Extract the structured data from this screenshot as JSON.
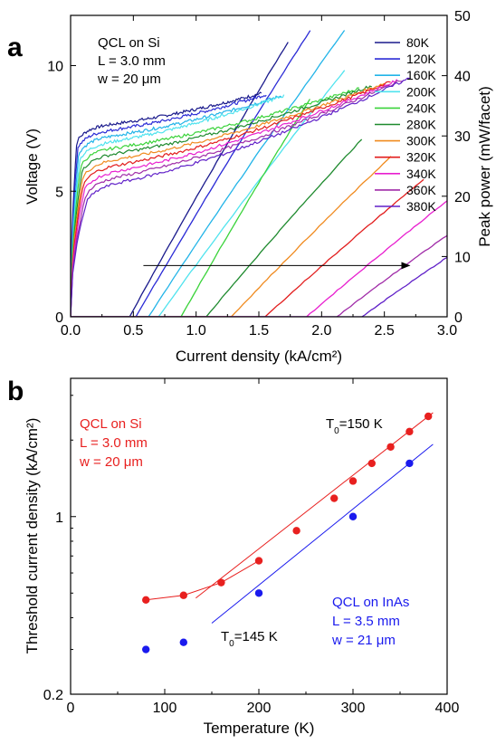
{
  "panel_a": {
    "letter": "a",
    "annotation": [
      "QCL on Si",
      "L = 3.0 mm",
      "w = 20 μm"
    ],
    "xlabel": "Current density (kA/cm²)",
    "ylabel_left": "Voltage (V)",
    "ylabel_right": "Peak power (mW/facet)",
    "x_ticks": [
      "0.0",
      "0.5",
      "1.0",
      "1.5",
      "2.0",
      "2.5",
      "3.0"
    ],
    "y_left_ticks": [
      "0",
      "5",
      "10"
    ],
    "y_right_ticks": [
      "0",
      "10",
      "20",
      "30",
      "40",
      "50"
    ]
  },
  "panel_b": {
    "letter": "b",
    "annotation_si": [
      "QCL on Si",
      "L = 3.0 mm",
      "w = 20 μm"
    ],
    "annotation_inas": [
      "QCL on InAs",
      "L = 3.5 mm",
      "w = 21 μm"
    ],
    "t0_si": {
      "prefix": "T",
      "sub": "0",
      "suffix": "=150 K"
    },
    "t0_inas": {
      "prefix": "T",
      "sub": "0",
      "suffix": "=145 K"
    },
    "xlabel": "Temperature (K)",
    "ylabel": "Threshold current density (kA/cm²)",
    "x_ticks": [
      "0",
      "100",
      "200",
      "300",
      "400"
    ],
    "y_ticks": [
      "0.2",
      "1"
    ]
  },
  "colors": {
    "si": "#e8201f",
    "inas": "#1a1aee",
    "arrow": "#000000"
  },
  "chart_data": [
    {
      "type": "line",
      "title": "",
      "xlabel": "Current density (kA/cm²)",
      "ylabel": "Voltage (V)",
      "y2label": "Peak power (mW/facet)",
      "xlim": [
        0,
        3.0
      ],
      "ylim": [
        0,
        12
      ],
      "y2lim": [
        0,
        50
      ],
      "legend_position": "top-right",
      "series": [
        {
          "name": "80K",
          "color": "#1a1a8c",
          "liv_end": 1.52,
          "v_end": 8.9,
          "jth": 0.47,
          "slope": 38.0,
          "p_end": 48.0
        },
        {
          "name": "120K",
          "color": "#2b2bd6",
          "liv_end": 1.56,
          "v_end": 8.85,
          "jth": 0.52,
          "slope": 36.0,
          "p_end": 50.0
        },
        {
          "name": "160K",
          "color": "#22b4e8",
          "liv_end": 1.68,
          "v_end": 8.8,
          "jth": 0.62,
          "slope": 32.0,
          "p_end": 50.0
        },
        {
          "name": "200K",
          "color": "#4fe3ee",
          "liv_end": 1.7,
          "v_end": 8.8,
          "jth": 0.7,
          "slope": 29.0,
          "p_end": 43.0
        },
        {
          "name": "240K",
          "color": "#3ad33a",
          "liv_end": 2.3,
          "v_end": 9.1,
          "jth": 0.88,
          "slope": 37.0,
          "p_end": 38.0
        },
        {
          "name": "280K",
          "color": "#1e8a2e",
          "liv_end": 2.4,
          "v_end": 9.2,
          "jth": 1.08,
          "slope": 25.0,
          "p_end": 31.0
        },
        {
          "name": "300K",
          "color": "#f08a1e",
          "liv_end": 2.5,
          "v_end": 9.3,
          "jth": 1.28,
          "slope": 22.0,
          "p_end": 28.0
        },
        {
          "name": "320K",
          "color": "#e21d1d",
          "liv_end": 2.55,
          "v_end": 9.35,
          "jth": 1.55,
          "slope": 19.0,
          "p_end": 24.0
        },
        {
          "name": "340K",
          "color": "#e81fcf",
          "liv_end": 2.6,
          "v_end": 9.4,
          "jth": 1.88,
          "slope": 18.0,
          "p_end": 22.0
        },
        {
          "name": "360K",
          "color": "#a02ca8",
          "liv_end": 2.65,
          "v_end": 9.45,
          "jth": 2.12,
          "slope": 16.0,
          "p_end": 18.0
        },
        {
          "name": "380K",
          "color": "#6020c8",
          "liv_end": 2.7,
          "v_end": 9.5,
          "jth": 2.32,
          "slope": 15.0,
          "p_end": 15.0
        }
      ],
      "arrow": {
        "x_start": 0.58,
        "x_end": 2.7,
        "y2": 8.5
      }
    },
    {
      "type": "scatter",
      "title": "",
      "xlabel": "Temperature (K)",
      "ylabel": "Threshold current density (kA/cm²)",
      "xlim": [
        0,
        400
      ],
      "ylim": [
        0.2,
        3.5
      ],
      "yscale": "log",
      "series": [
        {
          "name": "QCL on Si",
          "color": "#e8201f",
          "x": [
            80,
            120,
            160,
            200,
            240,
            280,
            300,
            320,
            340,
            360,
            380
          ],
          "y": [
            0.47,
            0.49,
            0.55,
            0.67,
            0.88,
            1.18,
            1.38,
            1.62,
            1.88,
            2.16,
            2.48
          ],
          "fit": {
            "T0": 150,
            "x_from": 133,
            "x_to": 385
          }
        },
        {
          "name": "QCL on InAs",
          "color": "#1a1aee",
          "x": [
            80,
            120,
            200,
            300,
            360
          ],
          "y": [
            0.3,
            0.32,
            0.5,
            1.0,
            1.62
          ],
          "fit": {
            "T0": 145,
            "x_from": 150,
            "x_to": 385
          }
        }
      ]
    }
  ]
}
